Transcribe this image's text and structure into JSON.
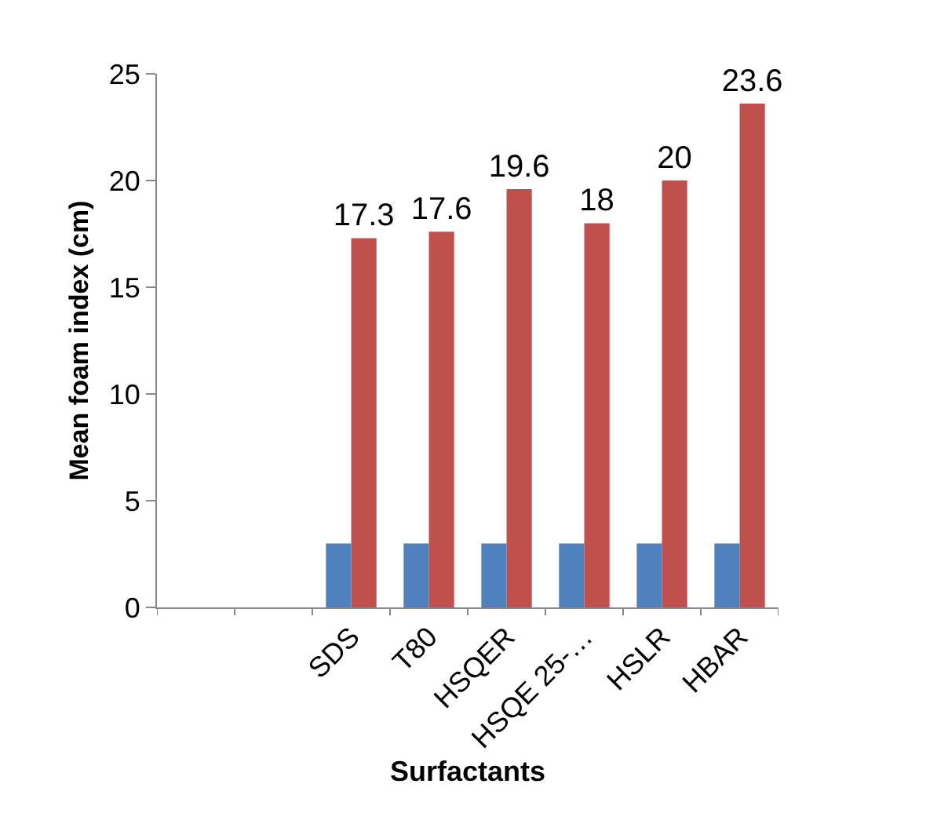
{
  "chart_data": {
    "type": "bar",
    "xlabel": "Surfactants",
    "ylabel": "Mean foam index (cm)",
    "categories": [
      null,
      null,
      "SDS",
      "T80",
      "HSQER",
      "HSQE 25-…",
      "HSLR",
      "HBAR"
    ],
    "series": [
      {
        "color": "#4f81bd",
        "values": [
          null,
          null,
          3,
          3,
          3,
          3,
          3,
          3
        ]
      },
      {
        "color": "#c0504d",
        "values": [
          null,
          null,
          17.3,
          17.6,
          19.6,
          18,
          20,
          23.6
        ],
        "value_labels": [
          null,
          null,
          "17.3",
          "17.6",
          "19.6",
          "18",
          "20",
          "23.6"
        ]
      }
    ],
    "ylim": [
      0,
      25
    ],
    "yticks": [
      0,
      5,
      10,
      15,
      20,
      25
    ],
    "grid": false
  }
}
